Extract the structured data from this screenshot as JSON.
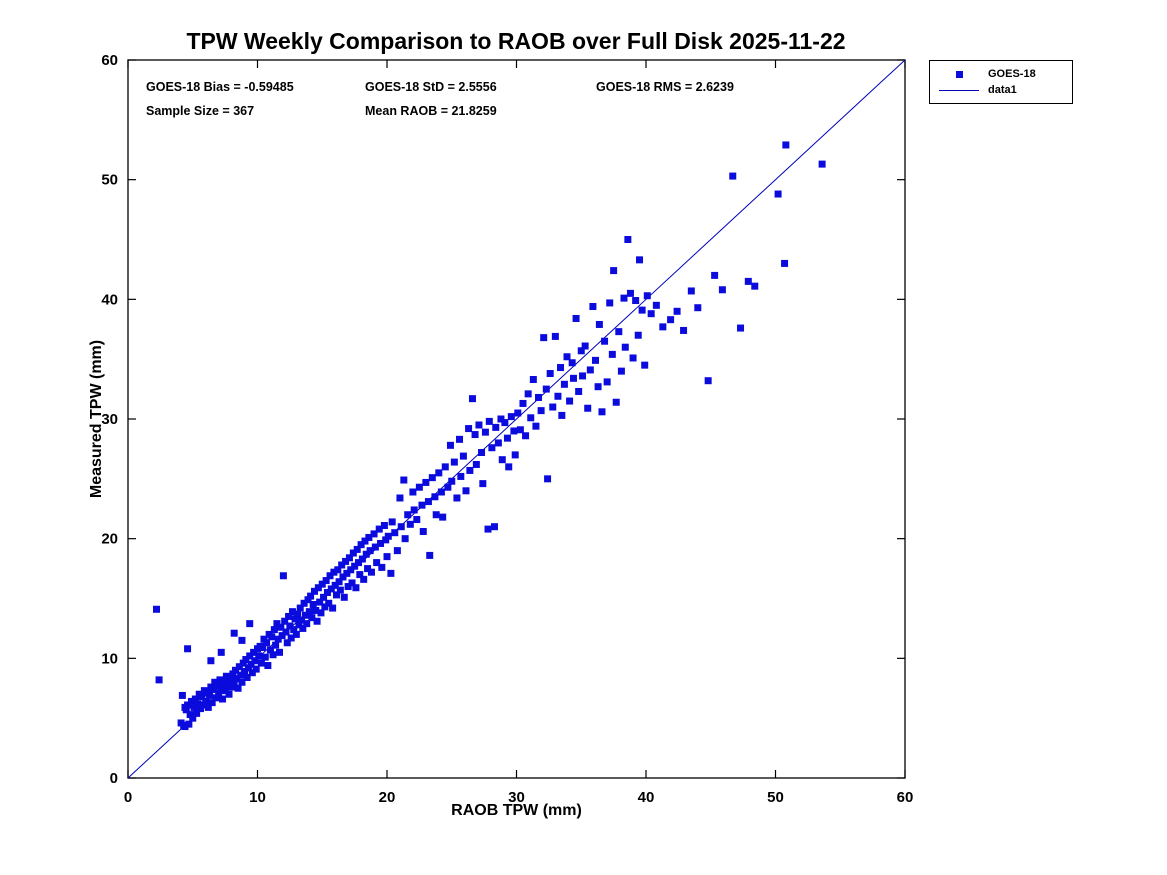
{
  "chart_data": {
    "type": "scatter",
    "title": "TPW Weekly Comparison to RAOB over Full Disk 2025-11-22",
    "xlabel": "RAOB TPW (mm)",
    "ylabel": "Measured TPW (mm)",
    "xlim": [
      0,
      60
    ],
    "ylim": [
      0,
      60
    ],
    "xticks": [
      0,
      10,
      20,
      30,
      40,
      50,
      60
    ],
    "yticks": [
      0,
      10,
      20,
      30,
      40,
      50,
      60
    ],
    "grid": false,
    "marker_color": "#0b0bdd",
    "line_color": "#0000bb",
    "annotations": {
      "bias_label": "GOES-18 Bias = -0.59485",
      "std_label": "GOES-18 StD = 2.5556",
      "rms_label": "GOES-18 RMS = 2.6239",
      "sample_label": "Sample Size = 367",
      "mean_label": "Mean RAOB = 21.8259",
      "bias": -0.59485,
      "std": 2.5556,
      "rms": 2.6239,
      "sample_size": 367,
      "mean_raob": 21.8259
    },
    "legend": {
      "position": "top-right-outside",
      "entries": [
        {
          "label": "GOES-18",
          "type": "marker"
        },
        {
          "label": "data1",
          "type": "line"
        }
      ]
    },
    "identity_line": {
      "x": [
        0,
        60
      ],
      "y": [
        0,
        60
      ]
    },
    "series": [
      {
        "name": "GOES-18",
        "points": [
          [
            2.2,
            14.1
          ],
          [
            2.4,
            8.2
          ],
          [
            4.2,
            6.9
          ],
          [
            4.3,
            4.4
          ],
          [
            4.4,
            4.3
          ],
          [
            4.5,
            5.7
          ],
          [
            4.6,
            10.8
          ],
          [
            4.6,
            6.1
          ],
          [
            4.7,
            4.5
          ],
          [
            4.8,
            5.3
          ],
          [
            4.9,
            6.4
          ],
          [
            5.0,
            5.0
          ],
          [
            4.4,
            5.9
          ],
          [
            4.1,
            4.6
          ],
          [
            5.1,
            5.9
          ],
          [
            5.2,
            6.6
          ],
          [
            5.3,
            5.4
          ],
          [
            5.4,
            6.2
          ],
          [
            5.5,
            7.0
          ],
          [
            5.6,
            5.8
          ],
          [
            5.7,
            6.8
          ],
          [
            5.8,
            6.1
          ],
          [
            5.9,
            7.3
          ],
          [
            6.0,
            6.4
          ],
          [
            6.1,
            7.1
          ],
          [
            6.2,
            5.9
          ],
          [
            6.3,
            6.9
          ],
          [
            6.4,
            7.6
          ],
          [
            6.5,
            6.3
          ],
          [
            6.6,
            7.4
          ],
          [
            6.7,
            8.0
          ],
          [
            6.8,
            6.7
          ],
          [
            6.9,
            7.7
          ],
          [
            7.0,
            7.1
          ],
          [
            7.1,
            8.2
          ],
          [
            7.2,
            7.5
          ],
          [
            7.3,
            6.6
          ],
          [
            7.4,
            8.0
          ],
          [
            7.5,
            7.3
          ],
          [
            7.6,
            8.5
          ],
          [
            7.7,
            7.8
          ],
          [
            7.8,
            7.0
          ],
          [
            7.9,
            8.3
          ],
          [
            8.0,
            7.6
          ],
          [
            8.1,
            8.7
          ],
          [
            8.2,
            8.0
          ],
          [
            8.3,
            9.0
          ],
          [
            8.4,
            8.3
          ],
          [
            8.5,
            7.5
          ],
          [
            8.6,
            9.3
          ],
          [
            8.7,
            8.6
          ],
          [
            8.8,
            8.0
          ],
          [
            8.9,
            9.6
          ],
          [
            9.0,
            8.9
          ],
          [
            9.1,
            9.9
          ],
          [
            9.2,
            8.4
          ],
          [
            9.3,
            9.2
          ],
          [
            9.4,
            10.2
          ],
          [
            9.5,
            9.5
          ],
          [
            9.6,
            8.8
          ],
          [
            9.7,
            10.5
          ],
          [
            9.8,
            9.8
          ],
          [
            9.9,
            9.1
          ],
          [
            10.0,
            10.8
          ],
          [
            8.2,
            12.1
          ],
          [
            8.8,
            11.5
          ],
          [
            9.4,
            12.9
          ],
          [
            7.2,
            10.5
          ],
          [
            6.4,
            9.8
          ],
          [
            10.1,
            10.2
          ],
          [
            10.2,
            11.0
          ],
          [
            10.3,
            9.6
          ],
          [
            10.4,
            10.9
          ],
          [
            10.5,
            11.6
          ],
          [
            10.6,
            10.1
          ],
          [
            10.7,
            11.3
          ],
          [
            10.8,
            9.4
          ],
          [
            10.9,
            12.0
          ],
          [
            11.0,
            10.7
          ],
          [
            11.1,
            11.8
          ],
          [
            11.2,
            10.3
          ],
          [
            11.3,
            12.4
          ],
          [
            11.4,
            11.1
          ],
          [
            11.5,
            12.9
          ],
          [
            11.6,
            11.6
          ],
          [
            11.7,
            10.5
          ],
          [
            11.8,
            12.6
          ],
          [
            11.9,
            11.9
          ],
          [
            12.0,
            16.9
          ],
          [
            12.1,
            13.1
          ],
          [
            12.2,
            12.2
          ],
          [
            12.3,
            11.3
          ],
          [
            12.4,
            13.5
          ],
          [
            12.5,
            12.7
          ],
          [
            12.6,
            11.7
          ],
          [
            12.7,
            13.9
          ],
          [
            12.8,
            12.4
          ],
          [
            12.9,
            13.3
          ],
          [
            13.0,
            12.0
          ],
          [
            13.1,
            13.7
          ],
          [
            13.2,
            12.8
          ],
          [
            13.3,
            14.2
          ],
          [
            13.4,
            13.2
          ],
          [
            13.5,
            12.5
          ],
          [
            13.6,
            14.6
          ],
          [
            13.7,
            13.6
          ],
          [
            13.8,
            12.9
          ],
          [
            13.9,
            14.9
          ],
          [
            14.0,
            13.9
          ],
          [
            14.1,
            15.2
          ],
          [
            14.2,
            13.4
          ],
          [
            14.3,
            14.5
          ],
          [
            14.4,
            15.6
          ],
          [
            14.5,
            14.0
          ],
          [
            14.6,
            13.1
          ],
          [
            14.7,
            15.9
          ],
          [
            14.8,
            14.7
          ],
          [
            14.9,
            13.8
          ],
          [
            15.0,
            16.2
          ],
          [
            15.1,
            15.1
          ],
          [
            15.2,
            14.3
          ],
          [
            15.3,
            16.5
          ],
          [
            15.4,
            15.5
          ],
          [
            15.5,
            14.6
          ],
          [
            15.6,
            16.9
          ],
          [
            15.7,
            15.8
          ],
          [
            15.8,
            14.2
          ],
          [
            15.9,
            17.2
          ],
          [
            16.0,
            16.1
          ],
          [
            16.1,
            15.3
          ],
          [
            16.2,
            17.4
          ],
          [
            16.3,
            16.4
          ],
          [
            16.4,
            15.7
          ],
          [
            16.5,
            17.8
          ],
          [
            16.6,
            16.8
          ],
          [
            16.7,
            15.1
          ],
          [
            16.8,
            18.1
          ],
          [
            16.9,
            17.1
          ],
          [
            17.0,
            16.0
          ],
          [
            17.1,
            18.4
          ],
          [
            17.2,
            17.4
          ],
          [
            17.3,
            16.3
          ],
          [
            17.4,
            18.8
          ],
          [
            17.5,
            17.7
          ],
          [
            17.6,
            15.9
          ],
          [
            17.7,
            19.1
          ],
          [
            17.8,
            18.0
          ],
          [
            17.9,
            17.0
          ],
          [
            18.0,
            19.5
          ],
          [
            18.1,
            18.3
          ],
          [
            18.2,
            16.6
          ],
          [
            18.3,
            19.8
          ],
          [
            18.4,
            18.7
          ],
          [
            18.5,
            17.5
          ],
          [
            18.6,
            20.1
          ],
          [
            18.7,
            19.0
          ],
          [
            18.8,
            17.2
          ],
          [
            19.0,
            20.4
          ],
          [
            19.1,
            19.3
          ],
          [
            19.2,
            18.0
          ],
          [
            19.4,
            20.8
          ],
          [
            19.5,
            19.6
          ],
          [
            19.6,
            17.6
          ],
          [
            19.8,
            21.1
          ],
          [
            19.9,
            19.9
          ],
          [
            20.0,
            18.5
          ],
          [
            20.1,
            20.2
          ],
          [
            20.3,
            17.1
          ],
          [
            20.4,
            21.4
          ],
          [
            20.6,
            20.5
          ],
          [
            20.8,
            19.0
          ],
          [
            21.0,
            23.4
          ],
          [
            21.1,
            21.0
          ],
          [
            21.3,
            24.9
          ],
          [
            21.4,
            20.0
          ],
          [
            21.6,
            22.0
          ],
          [
            21.8,
            21.2
          ],
          [
            22.0,
            23.9
          ],
          [
            22.1,
            22.4
          ],
          [
            22.3,
            21.6
          ],
          [
            22.5,
            24.3
          ],
          [
            22.7,
            22.8
          ],
          [
            22.8,
            20.6
          ],
          [
            23.0,
            24.7
          ],
          [
            23.2,
            23.1
          ],
          [
            23.3,
            18.6
          ],
          [
            23.5,
            25.1
          ],
          [
            23.7,
            23.5
          ],
          [
            23.8,
            22.0
          ],
          [
            24.0,
            25.5
          ],
          [
            24.2,
            23.9
          ],
          [
            24.3,
            21.8
          ],
          [
            24.5,
            26.0
          ],
          [
            24.7,
            24.3
          ],
          [
            24.9,
            27.8
          ],
          [
            25.0,
            24.8
          ],
          [
            25.2,
            26.4
          ],
          [
            25.4,
            23.4
          ],
          [
            25.6,
            28.3
          ],
          [
            25.7,
            25.2
          ],
          [
            25.9,
            26.9
          ],
          [
            26.1,
            24.0
          ],
          [
            26.3,
            29.2
          ],
          [
            26.4,
            25.7
          ],
          [
            26.6,
            31.7
          ],
          [
            26.8,
            28.7
          ],
          [
            26.9,
            26.2
          ],
          [
            27.1,
            29.5
          ],
          [
            27.3,
            27.2
          ],
          [
            27.4,
            24.6
          ],
          [
            27.6,
            28.9
          ],
          [
            27.8,
            20.8
          ],
          [
            27.9,
            29.8
          ],
          [
            28.1,
            27.6
          ],
          [
            28.3,
            21.0
          ],
          [
            28.4,
            29.3
          ],
          [
            28.6,
            28.0
          ],
          [
            28.8,
            30.0
          ],
          [
            28.9,
            26.6
          ],
          [
            29.1,
            29.7
          ],
          [
            29.3,
            28.4
          ],
          [
            29.4,
            26.0
          ],
          [
            29.6,
            30.2
          ],
          [
            29.8,
            29.0
          ],
          [
            29.9,
            27.0
          ],
          [
            30.1,
            30.5
          ],
          [
            30.3,
            29.1
          ],
          [
            30.5,
            31.3
          ],
          [
            30.7,
            28.6
          ],
          [
            30.9,
            32.1
          ],
          [
            31.1,
            30.1
          ],
          [
            31.3,
            33.3
          ],
          [
            31.5,
            29.4
          ],
          [
            31.7,
            31.8
          ],
          [
            31.9,
            30.7
          ],
          [
            32.1,
            36.8
          ],
          [
            32.3,
            32.5
          ],
          [
            32.4,
            25.0
          ],
          [
            32.6,
            33.8
          ],
          [
            32.8,
            31.0
          ],
          [
            33.0,
            36.9
          ],
          [
            33.2,
            31.9
          ],
          [
            33.4,
            34.3
          ],
          [
            33.5,
            30.3
          ],
          [
            33.7,
            32.9
          ],
          [
            33.9,
            35.2
          ],
          [
            34.1,
            31.5
          ],
          [
            34.3,
            34.7
          ],
          [
            34.4,
            33.4
          ],
          [
            34.6,
            38.4
          ],
          [
            34.8,
            32.3
          ],
          [
            35.0,
            35.7
          ],
          [
            35.1,
            33.6
          ],
          [
            35.3,
            36.1
          ],
          [
            35.5,
            30.9
          ],
          [
            35.7,
            34.1
          ],
          [
            35.9,
            39.4
          ],
          [
            36.1,
            34.9
          ],
          [
            36.3,
            32.7
          ],
          [
            36.4,
            37.9
          ],
          [
            36.6,
            30.6
          ],
          [
            36.8,
            36.5
          ],
          [
            37.0,
            33.1
          ],
          [
            37.2,
            39.7
          ],
          [
            37.4,
            35.4
          ],
          [
            37.5,
            42.4
          ],
          [
            37.7,
            31.4
          ],
          [
            37.9,
            37.3
          ],
          [
            38.1,
            34.0
          ],
          [
            38.3,
            40.1
          ],
          [
            38.4,
            36.0
          ],
          [
            38.6,
            45.0
          ],
          [
            38.8,
            40.5
          ],
          [
            39.0,
            35.1
          ],
          [
            39.2,
            39.9
          ],
          [
            39.4,
            37.0
          ],
          [
            39.5,
            43.3
          ],
          [
            39.7,
            39.1
          ],
          [
            39.9,
            34.5
          ],
          [
            40.1,
            40.3
          ],
          [
            40.4,
            38.8
          ],
          [
            40.8,
            39.5
          ],
          [
            41.3,
            37.7
          ],
          [
            41.9,
            38.3
          ],
          [
            42.4,
            39.0
          ],
          [
            42.9,
            37.4
          ],
          [
            43.5,
            40.7
          ],
          [
            44.0,
            39.3
          ],
          [
            44.8,
            33.2
          ],
          [
            45.3,
            42.0
          ],
          [
            45.9,
            40.8
          ],
          [
            46.7,
            50.3
          ],
          [
            47.3,
            37.6
          ],
          [
            47.9,
            41.5
          ],
          [
            48.4,
            41.1
          ],
          [
            50.2,
            48.8
          ],
          [
            50.7,
            43.0
          ],
          [
            50.8,
            52.9
          ],
          [
            53.6,
            51.3
          ]
        ]
      }
    ]
  }
}
